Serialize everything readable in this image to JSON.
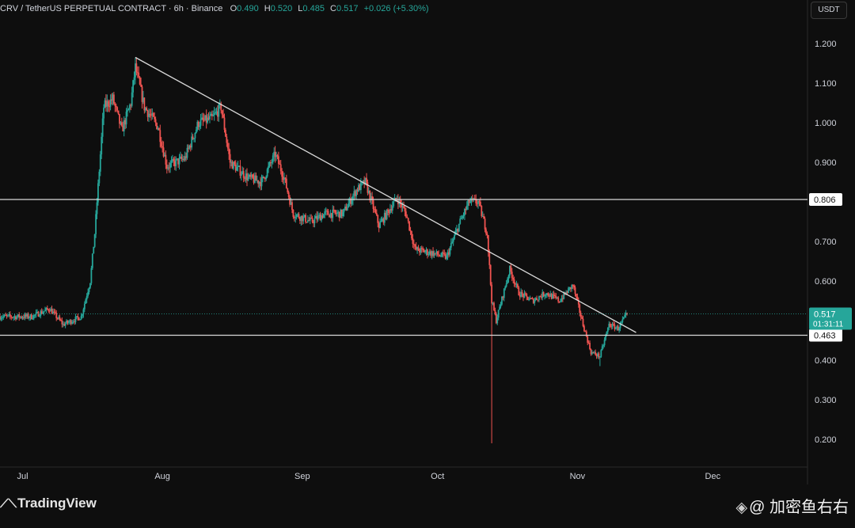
{
  "header": {
    "symbol": "CRV / TetherUS PERPETUAL CONTRACT · 6h · Binance",
    "o_label": "O",
    "o_value": "0.490",
    "h_label": "H",
    "h_value": "0.520",
    "l_label": "L",
    "l_value": "0.485",
    "c_label": "C",
    "c_value": "0.517",
    "change": "+0.026 (+5.30%)"
  },
  "currency_button": "USDT",
  "price_badges": {
    "current_price": "0.517",
    "countdown": "01:31:11",
    "resistance_level": "0.806",
    "support_level": "0.463"
  },
  "footer": {
    "logo_text": "TradingView",
    "watermark": "@ 加密鱼右右"
  },
  "colors": {
    "up": "#26a69a",
    "down": "#ef5350",
    "background": "#0e0e0e",
    "line": "#d9d9d9"
  },
  "chart_data": {
    "type": "candlestick",
    "x_tick_labels": [
      "Jul",
      "Aug",
      "Sep",
      "Oct",
      "Nov",
      "Dec"
    ],
    "y_tick_labels": [
      "1.200",
      "1.100",
      "1.000",
      "0.900",
      "0.800",
      "0.700",
      "0.600",
      "0.500",
      "0.400",
      "0.300",
      "0.200"
    ],
    "y_ticks": [
      1.2,
      1.1,
      1.0,
      0.9,
      0.8,
      0.7,
      0.6,
      0.5,
      0.4,
      0.3,
      0.2
    ],
    "ylim": [
      0.13,
      1.31
    ],
    "xlim": [
      "2024-06-26",
      "2024-12-22"
    ],
    "horizontal_lines": [
      0.806,
      0.463
    ],
    "current_price": 0.517,
    "trendline": {
      "start": [
        "2024-07-26",
        1.165
      ],
      "end": [
        "2024-11-14",
        0.47
      ]
    },
    "price_path": [
      [
        "2024-06-26",
        0.51
      ],
      [
        "2024-07-03",
        0.51
      ],
      [
        "2024-07-07",
        0.53
      ],
      [
        "2024-07-10",
        0.49
      ],
      [
        "2024-07-14",
        0.51
      ],
      [
        "2024-07-16",
        0.6
      ],
      [
        "2024-07-17",
        0.72
      ],
      [
        "2024-07-18",
        0.88
      ],
      [
        "2024-07-19",
        1.04
      ],
      [
        "2024-07-21",
        1.06
      ],
      [
        "2024-07-23",
        0.98
      ],
      [
        "2024-07-25",
        1.05
      ],
      [
        "2024-07-26",
        1.14
      ],
      [
        "2024-07-28",
        1.04
      ],
      [
        "2024-07-31",
        0.99
      ],
      [
        "2024-08-02",
        0.89
      ],
      [
        "2024-08-06",
        0.91
      ],
      [
        "2024-08-09",
        1.0
      ],
      [
        "2024-08-12",
        1.01
      ],
      [
        "2024-08-14",
        1.04
      ],
      [
        "2024-08-16",
        0.9
      ],
      [
        "2024-08-20",
        0.86
      ],
      [
        "2024-08-23",
        0.85
      ],
      [
        "2024-08-26",
        0.92
      ],
      [
        "2024-08-28",
        0.86
      ],
      [
        "2024-08-30",
        0.77
      ],
      [
        "2024-09-03",
        0.75
      ],
      [
        "2024-09-06",
        0.77
      ],
      [
        "2024-09-10",
        0.77
      ],
      [
        "2024-09-13",
        0.83
      ],
      [
        "2024-09-15",
        0.85
      ],
      [
        "2024-09-18",
        0.74
      ],
      [
        "2024-09-22",
        0.81
      ],
      [
        "2024-09-24",
        0.77
      ],
      [
        "2024-09-26",
        0.68
      ],
      [
        "2024-09-30",
        0.67
      ],
      [
        "2024-10-03",
        0.66
      ],
      [
        "2024-10-06",
        0.75
      ],
      [
        "2024-10-08",
        0.8
      ],
      [
        "2024-10-10",
        0.8
      ],
      [
        "2024-10-12",
        0.72
      ],
      [
        "2024-10-13",
        0.55
      ],
      [
        "2024-10-14",
        0.5
      ],
      [
        "2024-10-17",
        0.63
      ],
      [
        "2024-10-19",
        0.57
      ],
      [
        "2024-10-22",
        0.55
      ],
      [
        "2024-10-25",
        0.57
      ],
      [
        "2024-10-28",
        0.55
      ],
      [
        "2024-10-31",
        0.59
      ],
      [
        "2024-11-02",
        0.5
      ],
      [
        "2024-11-04",
        0.42
      ],
      [
        "2024-11-06",
        0.41
      ],
      [
        "2024-11-08",
        0.49
      ],
      [
        "2024-11-10",
        0.48
      ],
      [
        "2024-11-12",
        0.517
      ]
    ],
    "notable_wicks": [
      [
        "2024-10-13",
        0.19
      ],
      [
        "2024-07-26",
        1.165
      ],
      [
        "2024-11-06",
        0.385
      ]
    ]
  }
}
